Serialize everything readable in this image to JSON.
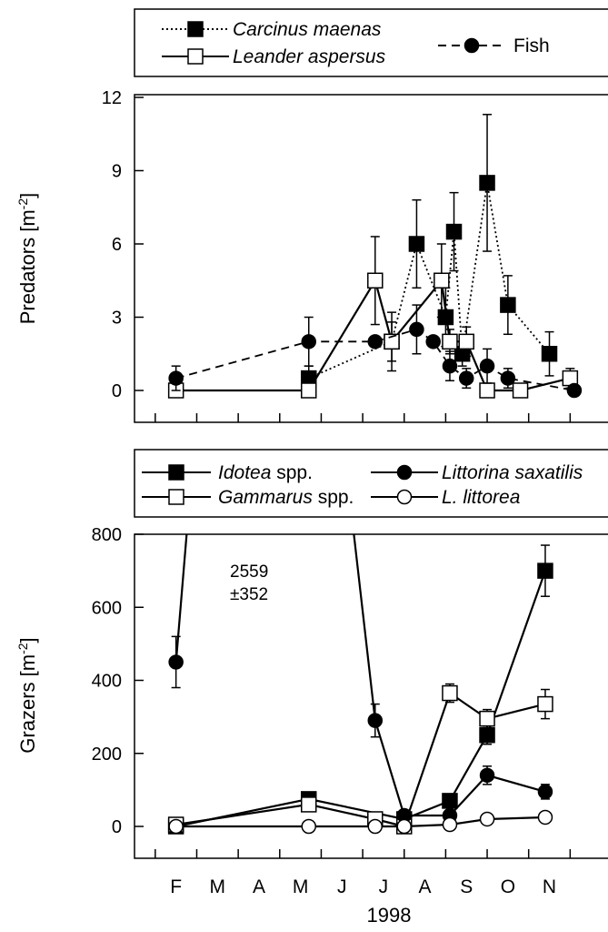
{
  "chart_data": [
    {
      "type": "line",
      "ylabel": "Predators [m-2]",
      "ylabel_main": "Predators [m",
      "ylabel_sup": "-2",
      "ylabel_end": "]",
      "ylim": [
        0,
        12
      ],
      "yticks": [
        0,
        3,
        6,
        9,
        12
      ],
      "legend": {
        "placement": "top",
        "boxed": true
      },
      "series": [
        {
          "name": "Carcinus maenas",
          "marker": "square-filled",
          "line": "dotted",
          "x": [
            4.2,
            6.2,
            6.8,
            7.5,
            7.7,
            7.9,
            8.5,
            9.0,
            10.0
          ],
          "y": [
            0.5,
            2.0,
            6.0,
            3.0,
            6.5,
            1.5,
            8.5,
            3.5,
            1.5
          ],
          "err": [
            0.5,
            1.2,
            1.8,
            1.2,
            1.6,
            0.5,
            2.8,
            1.2,
            0.9
          ]
        },
        {
          "name": "Leander aspersus",
          "marker": "square-open",
          "line": "solid",
          "x": [
            1.0,
            4.2,
            5.8,
            6.2,
            7.4,
            7.6,
            8.0,
            8.5,
            9.3,
            10.5
          ],
          "y": [
            0.0,
            0.0,
            4.5,
            2.0,
            4.5,
            2.0,
            2.0,
            0.0,
            0.0,
            0.5
          ],
          "err": [
            0,
            0,
            1.8,
            0.8,
            1.5,
            0.5,
            0.6,
            0,
            0,
            0.4
          ]
        },
        {
          "name": "Fish",
          "marker": "circle-filled",
          "line": "dashed",
          "x": [
            1.0,
            4.2,
            5.8,
            6.8,
            7.2,
            7.6,
            8.0,
            8.5,
            9.0,
            10.6
          ],
          "y": [
            0.5,
            2.0,
            2.0,
            2.5,
            2.0,
            1.0,
            0.5,
            1.0,
            0.5,
            0.0
          ],
          "err": [
            0.5,
            1.0,
            0.0,
            1.0,
            0.0,
            0.6,
            0.4,
            0.7,
            0.4,
            0
          ]
        }
      ]
    },
    {
      "type": "line",
      "xlabel": "1998",
      "ylabel": "Grazers [m-2]",
      "ylabel_main": "Grazers [m",
      "ylabel_sup": "-2",
      "ylabel_end": "]",
      "ylim": [
        0,
        800
      ],
      "yticks": [
        0,
        200,
        400,
        600,
        800
      ],
      "xlim": [
        0,
        11.5
      ],
      "x_categories": [
        "F",
        "M",
        "A",
        "M",
        "J",
        "J",
        "A",
        "S",
        "O",
        "N"
      ],
      "legend": {
        "placement": "top",
        "boxed": true
      },
      "annotation": {
        "line1": "2559",
        "line2": "±352"
      },
      "series": [
        {
          "name": "Idotea spp.",
          "marker": "square-filled",
          "line": "solid",
          "x": [
            1.0,
            4.2,
            6.5,
            7.6,
            8.5,
            9.9
          ],
          "y": [
            0,
            75,
            20,
            70,
            250,
            700
          ],
          "err": [
            0,
            15,
            0,
            15,
            25,
            70
          ]
        },
        {
          "name": "Gammarus spp.",
          "marker": "square-open",
          "line": "solid",
          "x": [
            1.0,
            4.2,
            5.8,
            6.5,
            7.6,
            8.5,
            9.9
          ],
          "y": [
            5,
            60,
            20,
            0,
            365,
            295,
            335
          ],
          "err": [
            0,
            10,
            0,
            0,
            25,
            25,
            40
          ]
        },
        {
          "name": "Littorina saxatilis",
          "marker": "circle-filled",
          "line": "solid",
          "x": [
            1.0,
            5.8,
            6.5,
            7.6,
            8.5,
            9.9
          ],
          "y": [
            450,
            290,
            30,
            30,
            140,
            95
          ],
          "err": [
            70,
            45,
            0,
            10,
            25,
            20
          ],
          "offscale_peak": {
            "x_from": 1.0,
            "x_to": 5.8,
            "label_value": "2559 ±352"
          }
        },
        {
          "name": "L. littorea",
          "marker": "circle-open",
          "line": "solid",
          "x": [
            1.0,
            4.2,
            5.8,
            6.5,
            7.6,
            8.5,
            9.9
          ],
          "y": [
            0,
            0,
            0,
            0,
            5,
            20,
            25
          ],
          "err": [
            0,
            0,
            0,
            0,
            0,
            5,
            8
          ]
        }
      ]
    }
  ]
}
